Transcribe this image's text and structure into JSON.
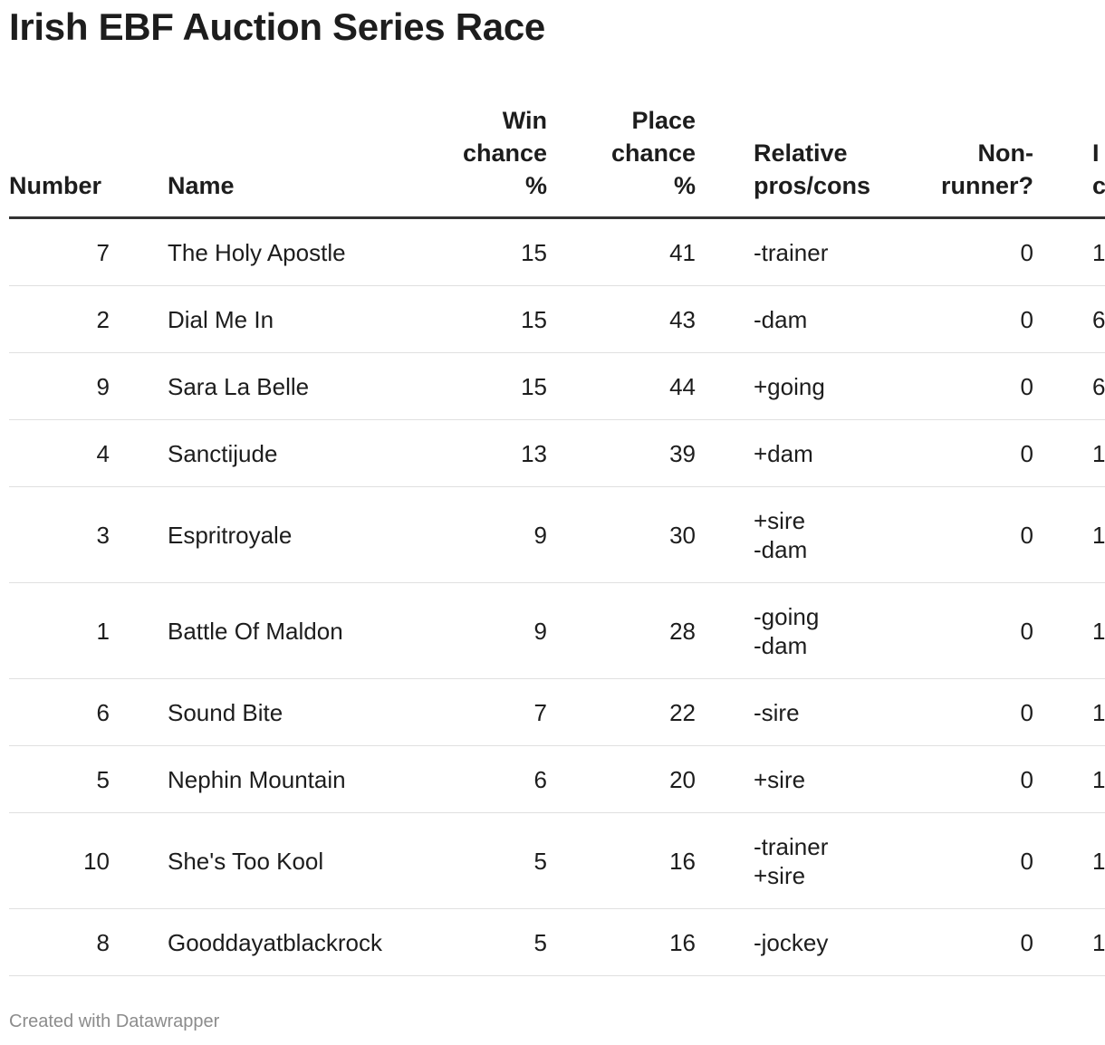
{
  "title": "Irish EBF Auction Series Race",
  "columns": {
    "number": "Number",
    "name": "Name",
    "win_line1": "Win",
    "win_line2": "chance",
    "win_line3": "%",
    "place_line1": "Place",
    "place_line2": "chance",
    "place_line3": "%",
    "pros_line1": "Relative",
    "pros_line2": "pros/cons",
    "nonrunner_line1": "Non-",
    "nonrunner_line2": "runner?",
    "extra_line1": "I",
    "extra_line2": "c"
  },
  "rows": [
    {
      "number": "7",
      "name": "The Holy Apostle",
      "win": "15",
      "place": "41",
      "pros": [
        "-trainer"
      ],
      "nonrunner": "0",
      "extra": "1"
    },
    {
      "number": "2",
      "name": "Dial Me In",
      "win": "15",
      "place": "43",
      "pros": [
        "-dam"
      ],
      "nonrunner": "0",
      "extra": "6"
    },
    {
      "number": "9",
      "name": "Sara La Belle",
      "win": "15",
      "place": "44",
      "pros": [
        "+going"
      ],
      "nonrunner": "0",
      "extra": "6"
    },
    {
      "number": "4",
      "name": "Sanctijude",
      "win": "13",
      "place": "39",
      "pros": [
        "+dam"
      ],
      "nonrunner": "0",
      "extra": "1"
    },
    {
      "number": "3",
      "name": "Espritroyale",
      "win": "9",
      "place": "30",
      "pros": [
        "+sire",
        "-dam"
      ],
      "nonrunner": "0",
      "extra": "1"
    },
    {
      "number": "1",
      "name": "Battle Of Maldon",
      "win": "9",
      "place": "28",
      "pros": [
        "-going",
        "-dam"
      ],
      "nonrunner": "0",
      "extra": "1"
    },
    {
      "number": "6",
      "name": "Sound Bite",
      "win": "7",
      "place": "22",
      "pros": [
        "-sire"
      ],
      "nonrunner": "0",
      "extra": "1"
    },
    {
      "number": "5",
      "name": "Nephin Mountain",
      "win": "6",
      "place": "20",
      "pros": [
        "+sire"
      ],
      "nonrunner": "0",
      "extra": "1"
    },
    {
      "number": "10",
      "name": "She's Too Kool",
      "win": "5",
      "place": "16",
      "pros": [
        "-trainer",
        "+sire"
      ],
      "nonrunner": "0",
      "extra": "1"
    },
    {
      "number": "8",
      "name": "Gooddayatblackrock",
      "win": "5",
      "place": "16",
      "pros": [
        "-jockey"
      ],
      "nonrunner": "0",
      "extra": "1"
    }
  ],
  "footer": "Created with Datawrapper"
}
